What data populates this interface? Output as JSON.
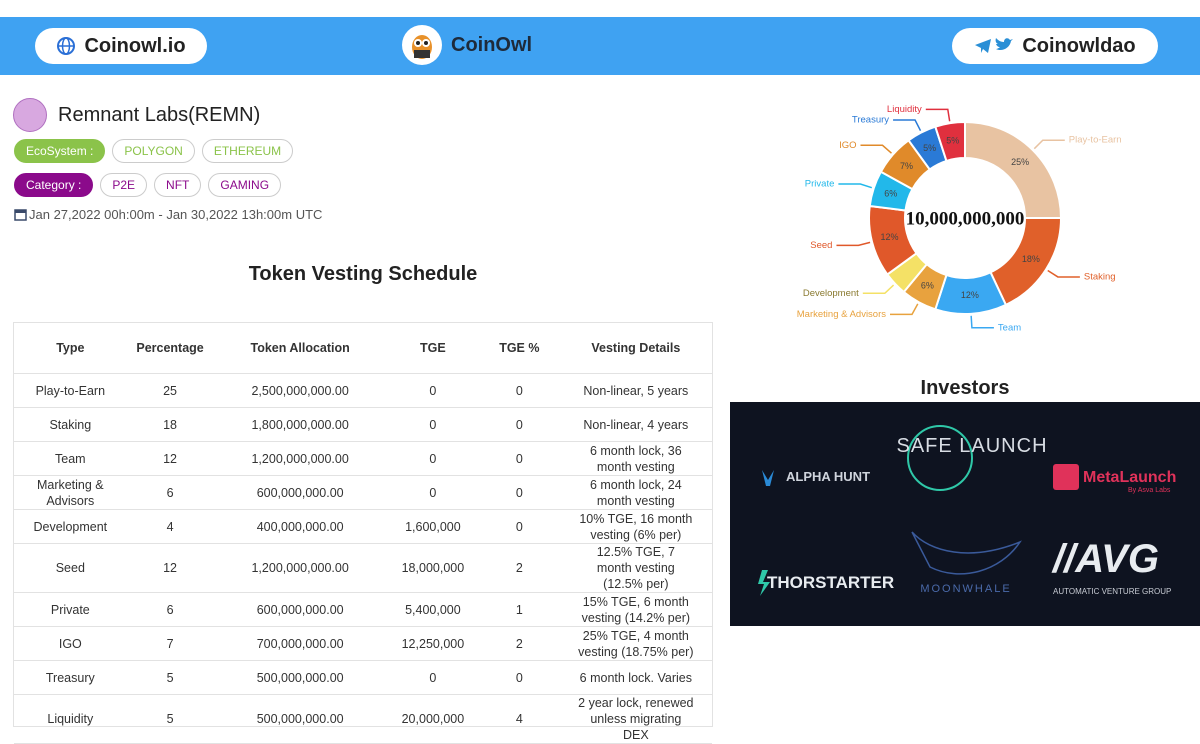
{
  "header": {
    "left_link": "Coinowl.io",
    "brand": "CoinOwl",
    "right_link": "Coinowldao"
  },
  "project": {
    "name": "Remnant Labs(REMN)",
    "ecosystem_label": "EcoSystem :",
    "ecosystems": [
      "POLYGON",
      "ETHEREUM"
    ],
    "category_label": "Category :",
    "categories": [
      "P2E",
      "NFT",
      "GAMING"
    ],
    "date": "Jan 27,2022 00h:00m - Jan 30,2022 13h:00m UTC"
  },
  "table": {
    "title": "Token Vesting Schedule",
    "headers": [
      "Type",
      "Percentage",
      "Token Allocation",
      "TGE",
      "TGE %",
      "Vesting Details"
    ],
    "rows": [
      [
        "Play-to-Earn",
        "25",
        "2,500,000,000.00",
        "0",
        "0",
        "Non-linear, 5 years"
      ],
      [
        "Staking",
        "18",
        "1,800,000,000.00",
        "0",
        "0",
        "Non-linear, 4 years"
      ],
      [
        "Team",
        "12",
        "1,200,000,000.00",
        "0",
        "0",
        "6 month lock, 36 month vesting"
      ],
      [
        "Marketing & Advisors",
        "6",
        "600,000,000.00",
        "0",
        "0",
        "6 month lock, 24 month vesting"
      ],
      [
        "Development",
        "4",
        "400,000,000.00",
        "1,600,000",
        "0",
        "10% TGE, 16 month vesting (6% per)"
      ],
      [
        "Seed",
        "12",
        "1,200,000,000.00",
        "18,000,000",
        "2",
        "12.5% TGE, 7 month vesting (12.5% per)"
      ],
      [
        "Private",
        "6",
        "600,000,000.00",
        "5,400,000",
        "1",
        "15% TGE, 6 month vesting (14.2% per)"
      ],
      [
        "IGO",
        "7",
        "700,000,000.00",
        "12,250,000",
        "2",
        "25% TGE, 4 month vesting (18.75% per)"
      ],
      [
        "Treasury",
        "5",
        "500,000,000.00",
        "0",
        "0",
        "6 month lock. Varies"
      ],
      [
        "Liquidity",
        "5",
        "500,000,000.00",
        "20,000,000",
        "4",
        "2 year lock, renewed unless migrating DEX"
      ]
    ]
  },
  "chart_data": {
    "type": "pie",
    "center_label": "10,000,000,000",
    "categories": [
      "Play-to-Earn",
      "Staking",
      "Team",
      "Marketing & Advisors",
      "Development",
      "Seed",
      "Private",
      "IGO",
      "Treasury",
      "Liquidity"
    ],
    "values": [
      25,
      18,
      12,
      6,
      4,
      12,
      6,
      7,
      5,
      5
    ],
    "value_labels": [
      "25%",
      "18%",
      "12%",
      "6%",
      null,
      "12%",
      "6%",
      "7%",
      "5%",
      "5%"
    ],
    "colors": [
      "#e8c3a2",
      "#e0602a",
      "#3aa8f2",
      "#e8a23e",
      "#f4e166",
      "#e0582a",
      "#22b8ea",
      "#e08a2a",
      "#2a7ad6",
      "#e0303e"
    ]
  },
  "investors": {
    "title": "Investors",
    "logos": [
      "ALPHA HUNT",
      "SAFE LAUNCH",
      "MetaLaunch",
      "By Asva Labs",
      "THORSTARTER",
      "MOONWHALE",
      "//AVG",
      "AUTOMATIC VENTURE GROUP"
    ]
  }
}
